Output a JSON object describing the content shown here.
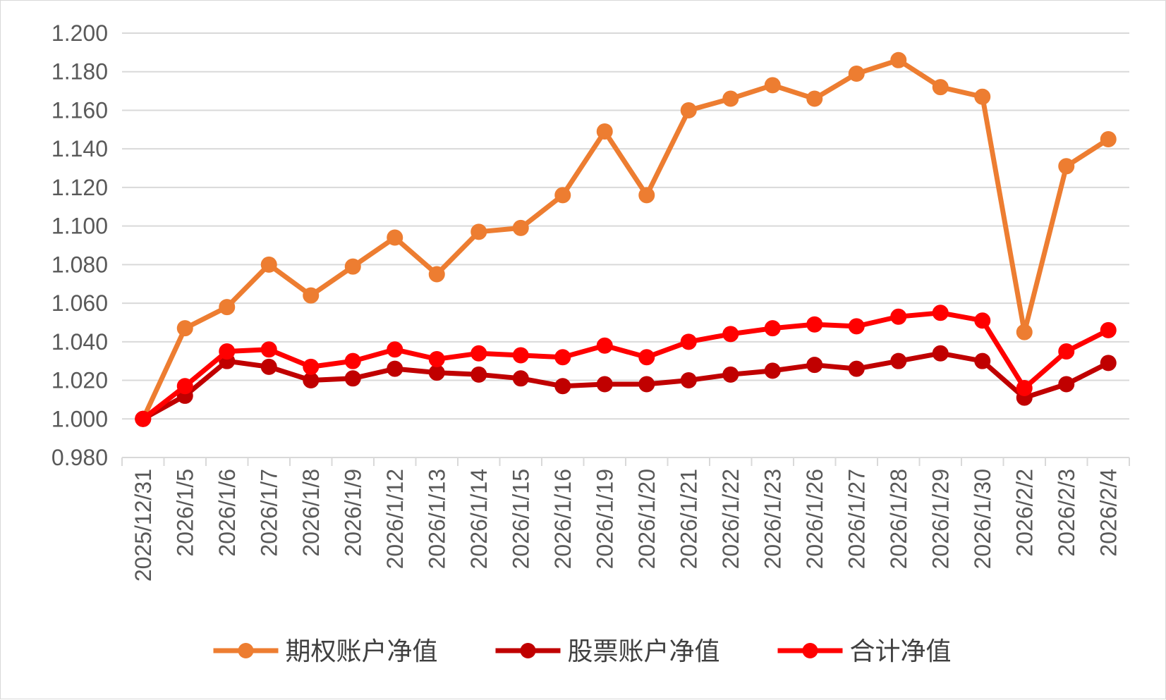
{
  "chart_data": {
    "type": "line",
    "title": "",
    "xlabel": "",
    "ylabel": "",
    "ylim": [
      0.98,
      1.2
    ],
    "ytick_step": 0.02,
    "yticks": [
      "0.980",
      "1.000",
      "1.020",
      "1.040",
      "1.060",
      "1.080",
      "1.100",
      "1.120",
      "1.140",
      "1.160",
      "1.180",
      "1.200"
    ],
    "grid": true,
    "legend_position": "bottom",
    "categories": [
      "2025/12/31",
      "2026/1/5",
      "2026/1/6",
      "2026/1/7",
      "2026/1/8",
      "2026/1/9",
      "2026/1/12",
      "2026/1/13",
      "2026/1/14",
      "2026/1/15",
      "2026/1/16",
      "2026/1/19",
      "2026/1/20",
      "2026/1/21",
      "2026/1/22",
      "2026/1/23",
      "2026/1/26",
      "2026/1/27",
      "2026/1/28",
      "2026/1/29",
      "2026/1/30",
      "2026/2/2",
      "2026/2/3",
      "2026/2/4"
    ],
    "series": [
      {
        "name": "期权账户净值",
        "color": "#ED7D31",
        "values": [
          1.0,
          1.047,
          1.058,
          1.08,
          1.064,
          1.079,
          1.094,
          1.075,
          1.097,
          1.099,
          1.116,
          1.149,
          1.116,
          1.16,
          1.166,
          1.173,
          1.166,
          1.179,
          1.186,
          1.172,
          1.167,
          1.045,
          1.131,
          1.145
        ]
      },
      {
        "name": "股票账户净值",
        "color": "#C00000",
        "values": [
          1.0,
          1.012,
          1.03,
          1.027,
          1.02,
          1.021,
          1.026,
          1.024,
          1.023,
          1.021,
          1.017,
          1.018,
          1.018,
          1.02,
          1.023,
          1.025,
          1.028,
          1.026,
          1.03,
          1.034,
          1.03,
          1.011,
          1.018,
          1.029
        ]
      },
      {
        "name": "合计净值",
        "color": "#FF0000",
        "values": [
          1.0,
          1.017,
          1.035,
          1.036,
          1.027,
          1.03,
          1.036,
          1.031,
          1.034,
          1.033,
          1.032,
          1.038,
          1.032,
          1.04,
          1.044,
          1.047,
          1.049,
          1.048,
          1.053,
          1.055,
          1.051,
          1.016,
          1.035,
          1.046
        ]
      }
    ]
  }
}
